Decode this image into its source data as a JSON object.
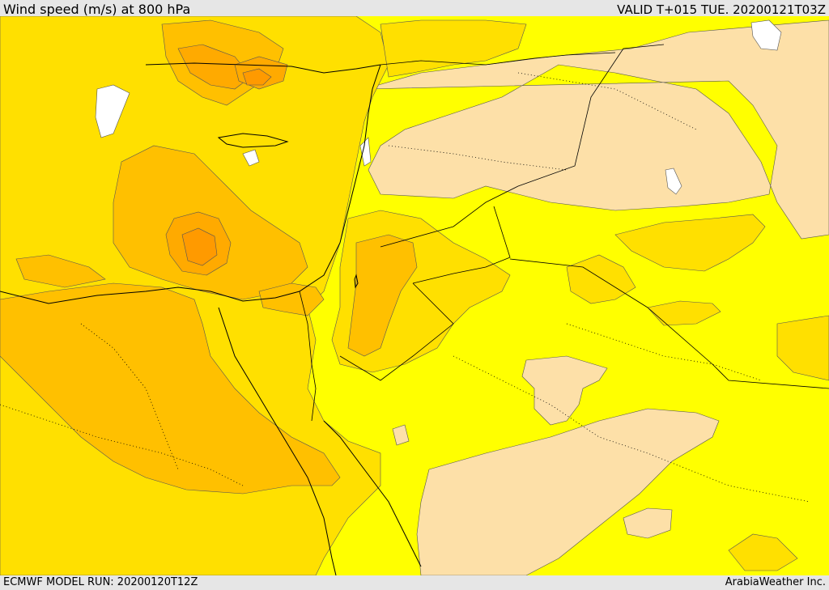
{
  "header": {
    "title": "Wind speed (m/s) at 800 hPa",
    "valid": "VALID T+015 TUE. 20200121T03Z"
  },
  "footer": {
    "model_run": "ECMWF MODEL RUN: 20200120T12Z",
    "credit": "ArabiaWeather Inc."
  },
  "colors": {
    "speed_very_low": "#ffffff",
    "speed_low": "#fde0a8",
    "speed_moderate": "#ffff00",
    "speed_fresh": "#ffe000",
    "speed_strong": "#ffc000",
    "speed_stronger": "#ffaa00",
    "speed_max": "#ff9a00",
    "coastline": "#000000",
    "borders": "#000000"
  }
}
